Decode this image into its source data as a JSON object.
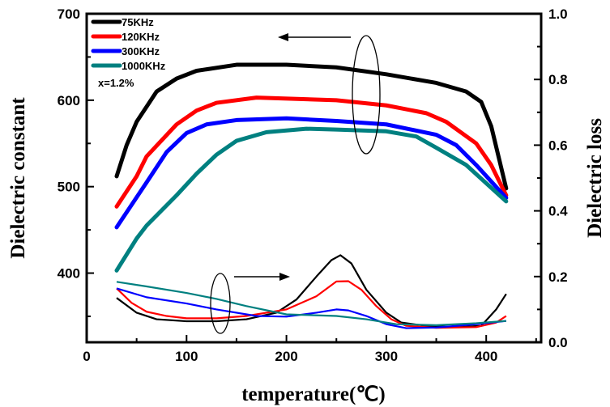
{
  "chart_data": {
    "type": "line",
    "xlabel": "temperature(℃)",
    "ylabel": "Dielectric constant",
    "y2label": "Dielectric loss",
    "xlim": [
      0,
      455
    ],
    "ylim": [
      320,
      700
    ],
    "y2lim": [
      0,
      1.0
    ],
    "xticks": [
      0,
      100,
      200,
      300,
      400
    ],
    "yticks": [
      400,
      500,
      600,
      700
    ],
    "y2ticks": [
      0.0,
      0.2,
      0.4,
      0.6,
      0.8,
      1.0
    ],
    "annotation": "x=1.2%",
    "legend_position": "top-left",
    "series": [
      {
        "name": "75KHz",
        "color": "#000000",
        "constant": [
          [
            30,
            512
          ],
          [
            40,
            548
          ],
          [
            50,
            575
          ],
          [
            70,
            610
          ],
          [
            90,
            625
          ],
          [
            110,
            634
          ],
          [
            150,
            641
          ],
          [
            200,
            641
          ],
          [
            250,
            638
          ],
          [
            300,
            630
          ],
          [
            350,
            620
          ],
          [
            380,
            610
          ],
          [
            395,
            598
          ],
          [
            405,
            570
          ],
          [
            420,
            498
          ]
        ],
        "loss": [
          [
            30,
            0.135
          ],
          [
            50,
            0.09
          ],
          [
            70,
            0.07
          ],
          [
            100,
            0.064
          ],
          [
            130,
            0.064
          ],
          [
            160,
            0.07
          ],
          [
            190,
            0.09
          ],
          [
            210,
            0.13
          ],
          [
            230,
            0.2
          ],
          [
            245,
            0.25
          ],
          [
            254,
            0.265
          ],
          [
            265,
            0.24
          ],
          [
            280,
            0.16
          ],
          [
            300,
            0.09
          ],
          [
            315,
            0.06
          ],
          [
            340,
            0.05
          ],
          [
            370,
            0.046
          ],
          [
            395,
            0.05
          ],
          [
            410,
            0.1
          ],
          [
            420,
            0.147
          ]
        ]
      },
      {
        "name": "120KHz",
        "color": "#ff0000",
        "constant": [
          [
            30,
            477
          ],
          [
            50,
            512
          ],
          [
            60,
            535
          ],
          [
            90,
            572
          ],
          [
            110,
            588
          ],
          [
            130,
            597
          ],
          [
            170,
            603
          ],
          [
            250,
            600
          ],
          [
            300,
            594
          ],
          [
            340,
            585
          ],
          [
            360,
            575
          ],
          [
            390,
            550
          ],
          [
            405,
            525
          ],
          [
            420,
            490
          ]
        ],
        "loss": [
          [
            30,
            0.164
          ],
          [
            45,
            0.12
          ],
          [
            60,
            0.093
          ],
          [
            80,
            0.08
          ],
          [
            100,
            0.073
          ],
          [
            130,
            0.073
          ],
          [
            160,
            0.08
          ],
          [
            200,
            0.1
          ],
          [
            230,
            0.14
          ],
          [
            250,
            0.185
          ],
          [
            262,
            0.186
          ],
          [
            275,
            0.16
          ],
          [
            290,
            0.11
          ],
          [
            305,
            0.07
          ],
          [
            320,
            0.05
          ],
          [
            350,
            0.044
          ],
          [
            390,
            0.046
          ],
          [
            410,
            0.06
          ],
          [
            420,
            0.08
          ]
        ]
      },
      {
        "name": "300KHz",
        "color": "#0000ff",
        "constant": [
          [
            30,
            453
          ],
          [
            60,
            505
          ],
          [
            80,
            540
          ],
          [
            100,
            562
          ],
          [
            120,
            572
          ],
          [
            150,
            577
          ],
          [
            200,
            579
          ],
          [
            250,
            576
          ],
          [
            300,
            572
          ],
          [
            350,
            560
          ],
          [
            370,
            548
          ],
          [
            390,
            525
          ],
          [
            420,
            487
          ]
        ],
        "loss": [
          [
            30,
            0.164
          ],
          [
            60,
            0.137
          ],
          [
            100,
            0.118
          ],
          [
            130,
            0.1
          ],
          [
            170,
            0.08
          ],
          [
            200,
            0.078
          ],
          [
            230,
            0.09
          ],
          [
            250,
            0.1
          ],
          [
            262,
            0.097
          ],
          [
            280,
            0.08
          ],
          [
            300,
            0.055
          ],
          [
            320,
            0.043
          ],
          [
            350,
            0.045
          ],
          [
            390,
            0.055
          ],
          [
            420,
            0.065
          ]
        ]
      },
      {
        "name": "1000KHz",
        "color": "#008080",
        "constant": [
          [
            30,
            403
          ],
          [
            50,
            440
          ],
          [
            60,
            455
          ],
          [
            90,
            490
          ],
          [
            110,
            515
          ],
          [
            130,
            537
          ],
          [
            150,
            553
          ],
          [
            180,
            563
          ],
          [
            220,
            567
          ],
          [
            250,
            566
          ],
          [
            300,
            564
          ],
          [
            330,
            558
          ],
          [
            350,
            545
          ],
          [
            380,
            525
          ],
          [
            420,
            483
          ]
        ],
        "loss": [
          [
            30,
            0.184
          ],
          [
            60,
            0.17
          ],
          [
            100,
            0.15
          ],
          [
            130,
            0.132
          ],
          [
            160,
            0.11
          ],
          [
            200,
            0.085
          ],
          [
            250,
            0.08
          ],
          [
            280,
            0.07
          ],
          [
            310,
            0.055
          ],
          [
            350,
            0.052
          ],
          [
            390,
            0.058
          ],
          [
            420,
            0.065
          ]
        ]
      }
    ]
  }
}
